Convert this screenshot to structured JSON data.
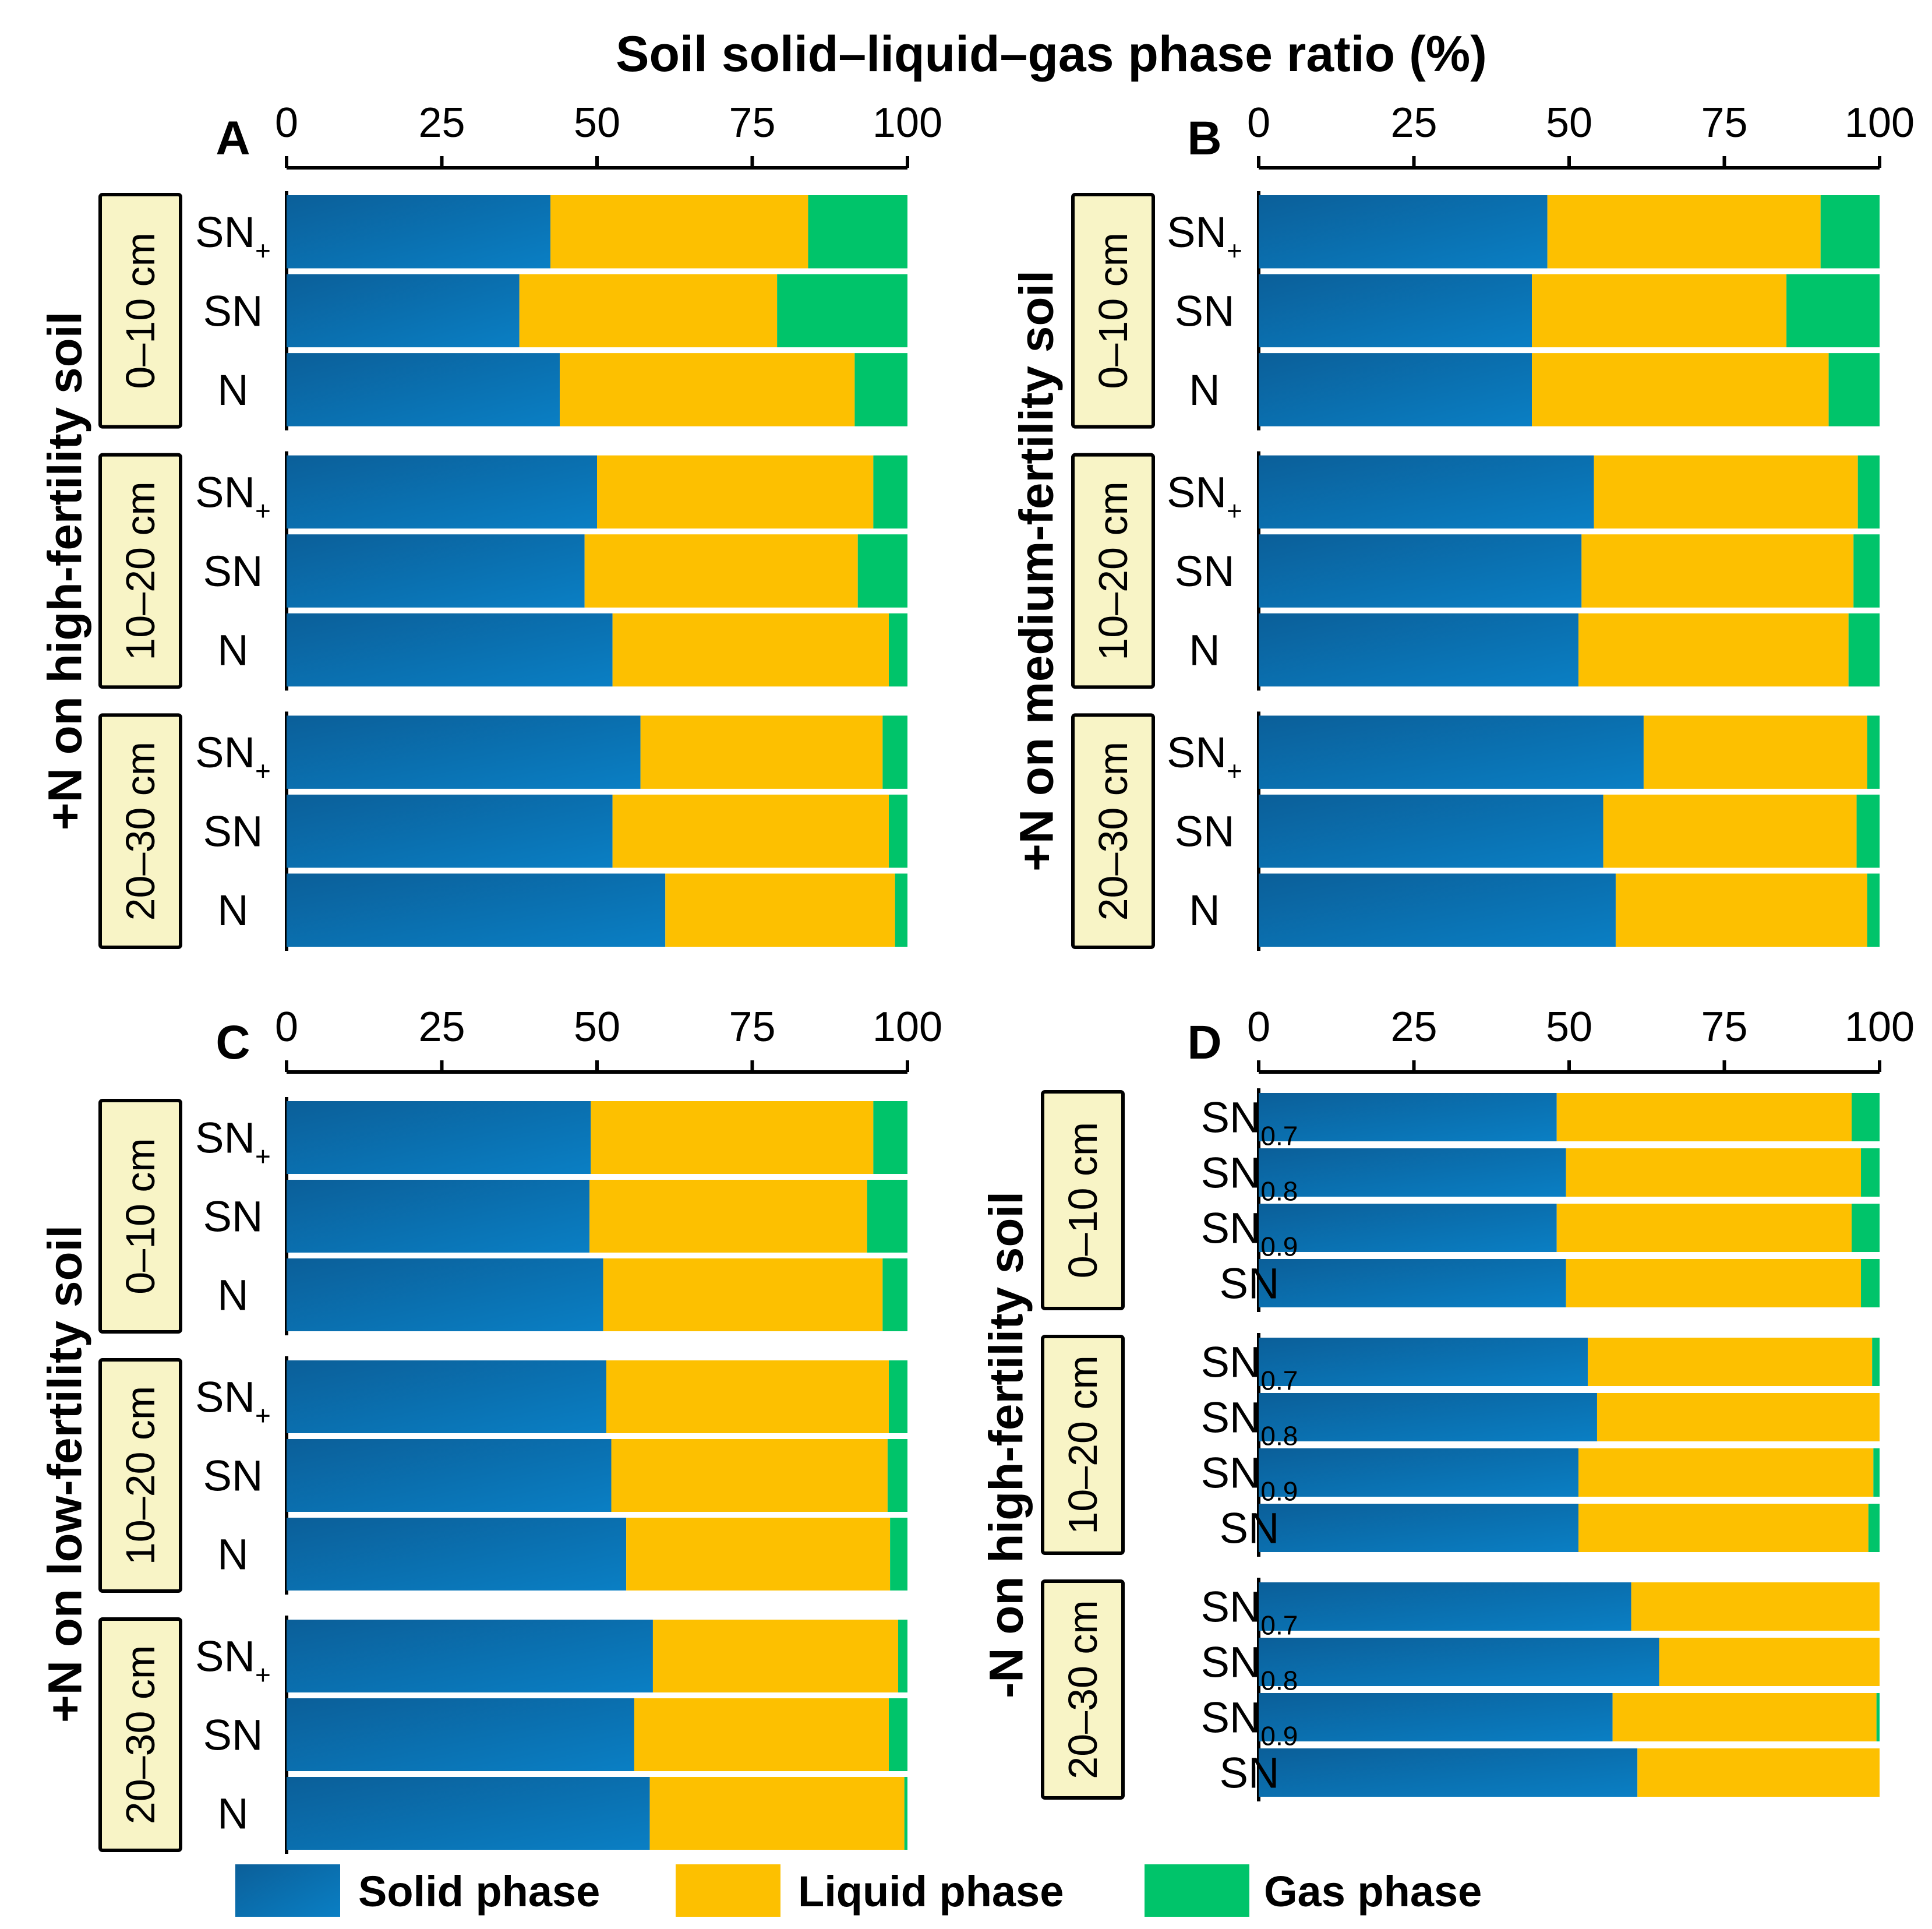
{
  "figure": {
    "title": "Soil solid–liquid–gas phase ratio (%)"
  },
  "colors": {
    "solid": "#0a6fae",
    "liquid": "#fdc000",
    "gas": "#00c46a",
    "depth_box_fill": "#f8f4c6",
    "axis": "#000000"
  },
  "legend": {
    "items": [
      {
        "key": "solid",
        "label": "Solid phase"
      },
      {
        "key": "liquid",
        "label": "Liquid phase"
      },
      {
        "key": "gas",
        "label": "Gas phase"
      }
    ]
  },
  "chart_data": [
    {
      "panel": "A",
      "type": "bar",
      "orientation": "horizontal",
      "stacked": true,
      "group_label": "+N on high-fertility soil",
      "xlim": [
        0,
        100
      ],
      "xticks": [
        "0",
        "25",
        "50",
        "75",
        "100"
      ],
      "series": [
        "Solid phase",
        "Liquid phase",
        "Gas phase"
      ],
      "groups": [
        {
          "depth": "0–10 cm",
          "rows": [
            {
              "label": "SN",
              "sub": "+",
              "values": [
                42.5,
                41.5,
                16.0
              ]
            },
            {
              "label": "SN",
              "sub": "",
              "values": [
                37.5,
                41.5,
                21.0
              ]
            },
            {
              "label": "N",
              "sub": "",
              "values": [
                44.0,
                47.5,
                8.5
              ]
            }
          ]
        },
        {
          "depth": "10–20 cm",
          "rows": [
            {
              "label": "SN",
              "sub": "+",
              "values": [
                50.0,
                44.5,
                5.5
              ]
            },
            {
              "label": "SN",
              "sub": "",
              "values": [
                48.0,
                44.0,
                8.0
              ]
            },
            {
              "label": "N",
              "sub": "",
              "values": [
                52.5,
                44.5,
                3.0
              ]
            }
          ]
        },
        {
          "depth": "20–30 cm",
          "rows": [
            {
              "label": "SN",
              "sub": "+",
              "values": [
                57.0,
                39.0,
                4.0
              ]
            },
            {
              "label": "SN",
              "sub": "",
              "values": [
                52.5,
                44.5,
                3.0
              ]
            },
            {
              "label": "N",
              "sub": "",
              "values": [
                61.0,
                37.0,
                2.0
              ]
            }
          ]
        }
      ]
    },
    {
      "panel": "B",
      "type": "bar",
      "orientation": "horizontal",
      "stacked": true,
      "group_label": "+N on medium-fertility soil",
      "xlim": [
        0,
        100
      ],
      "xticks": [
        "0",
        "25",
        "50",
        "75",
        "100"
      ],
      "series": [
        "Solid phase",
        "Liquid phase",
        "Gas phase"
      ],
      "groups": [
        {
          "depth": "0–10 cm",
          "rows": [
            {
              "label": "SN",
              "sub": "+",
              "values": [
                46.5,
                44.0,
                9.5
              ]
            },
            {
              "label": "SN",
              "sub": "",
              "values": [
                44.0,
                41.0,
                15.0
              ]
            },
            {
              "label": "N",
              "sub": "",
              "values": [
                44.0,
                47.8,
                8.2
              ]
            }
          ]
        },
        {
          "depth": "10–20 cm",
          "rows": [
            {
              "label": "SN",
              "sub": "+",
              "values": [
                54.0,
                42.5,
                3.5
              ]
            },
            {
              "label": "SN",
              "sub": "",
              "values": [
                52.0,
                43.8,
                4.2
              ]
            },
            {
              "label": "N",
              "sub": "",
              "values": [
                51.5,
                43.5,
                5.0
              ]
            }
          ]
        },
        {
          "depth": "20–30 cm",
          "rows": [
            {
              "label": "SN",
              "sub": "+",
              "values": [
                62.0,
                36.0,
                2.0
              ]
            },
            {
              "label": "SN",
              "sub": "",
              "values": [
                55.5,
                40.8,
                3.7
              ]
            },
            {
              "label": "N",
              "sub": "",
              "values": [
                57.5,
                40.5,
                2.0
              ]
            }
          ]
        }
      ]
    },
    {
      "panel": "C",
      "type": "bar",
      "orientation": "horizontal",
      "stacked": true,
      "group_label": "+N on low-fertility soil",
      "xlim": [
        0,
        100
      ],
      "xticks": [
        "0",
        "25",
        "50",
        "75",
        "100"
      ],
      "series": [
        "Solid phase",
        "Liquid phase",
        "Gas phase"
      ],
      "groups": [
        {
          "depth": "0–10 cm",
          "rows": [
            {
              "label": "SN",
              "sub": "+",
              "values": [
                49.0,
                45.5,
                5.5
              ]
            },
            {
              "label": "SN",
              "sub": "",
              "values": [
                48.8,
                44.7,
                6.5
              ]
            },
            {
              "label": "N",
              "sub": "",
              "values": [
                51.0,
                45.0,
                4.0
              ]
            }
          ]
        },
        {
          "depth": "10–20 cm",
          "rows": [
            {
              "label": "SN",
              "sub": "+",
              "values": [
                51.5,
                45.5,
                3.0
              ]
            },
            {
              "label": "SN",
              "sub": "",
              "values": [
                52.3,
                44.5,
                3.2
              ]
            },
            {
              "label": "N",
              "sub": "",
              "values": [
                54.7,
                42.5,
                2.8
              ]
            }
          ]
        },
        {
          "depth": "20–30 cm",
          "rows": [
            {
              "label": "SN",
              "sub": "+",
              "values": [
                59.0,
                39.5,
                1.5
              ]
            },
            {
              "label": "SN",
              "sub": "",
              "values": [
                56.0,
                41.0,
                3.0
              ]
            },
            {
              "label": "N",
              "sub": "",
              "values": [
                58.5,
                41.0,
                0.5
              ]
            }
          ]
        }
      ]
    },
    {
      "panel": "D",
      "type": "bar",
      "orientation": "horizontal",
      "stacked": true,
      "group_label": "-N on high-fertility soil",
      "xlim": [
        0,
        100
      ],
      "xticks": [
        "0",
        "25",
        "50",
        "75",
        "100"
      ],
      "series": [
        "Solid phase",
        "Liquid phase",
        "Gas phase"
      ],
      "groups": [
        {
          "depth": "0–10 cm",
          "rows": [
            {
              "label": "SN",
              "sub": "0.7",
              "values": [
                48.0,
                47.5,
                4.5
              ]
            },
            {
              "label": "SN",
              "sub": "0.8",
              "values": [
                49.5,
                47.5,
                3.0
              ]
            },
            {
              "label": "SN",
              "sub": "0.9",
              "values": [
                48.0,
                47.5,
                4.5
              ]
            },
            {
              "label": "SN",
              "sub": "",
              "values": [
                49.5,
                47.5,
                3.0
              ]
            }
          ]
        },
        {
          "depth": "10–20 cm",
          "rows": [
            {
              "label": "SN",
              "sub": "0.7",
              "values": [
                53.0,
                45.8,
                1.2
              ]
            },
            {
              "label": "SN",
              "sub": "0.8",
              "values": [
                54.5,
                45.5,
                0.0
              ]
            },
            {
              "label": "SN",
              "sub": "0.9",
              "values": [
                51.5,
                47.5,
                1.0
              ]
            },
            {
              "label": "SN",
              "sub": "",
              "values": [
                51.5,
                46.7,
                1.8
              ]
            }
          ]
        },
        {
          "depth": "20–30 cm",
          "rows": [
            {
              "label": "SN",
              "sub": "0.7",
              "values": [
                60.0,
                40.0,
                0.0
              ]
            },
            {
              "label": "SN",
              "sub": "0.8",
              "values": [
                64.5,
                35.5,
                0.0
              ]
            },
            {
              "label": "SN",
              "sub": "0.9",
              "values": [
                57.0,
                42.5,
                0.5
              ]
            },
            {
              "label": "SN",
              "sub": "",
              "values": [
                61.0,
                39.0,
                0.0
              ]
            }
          ]
        }
      ]
    }
  ]
}
